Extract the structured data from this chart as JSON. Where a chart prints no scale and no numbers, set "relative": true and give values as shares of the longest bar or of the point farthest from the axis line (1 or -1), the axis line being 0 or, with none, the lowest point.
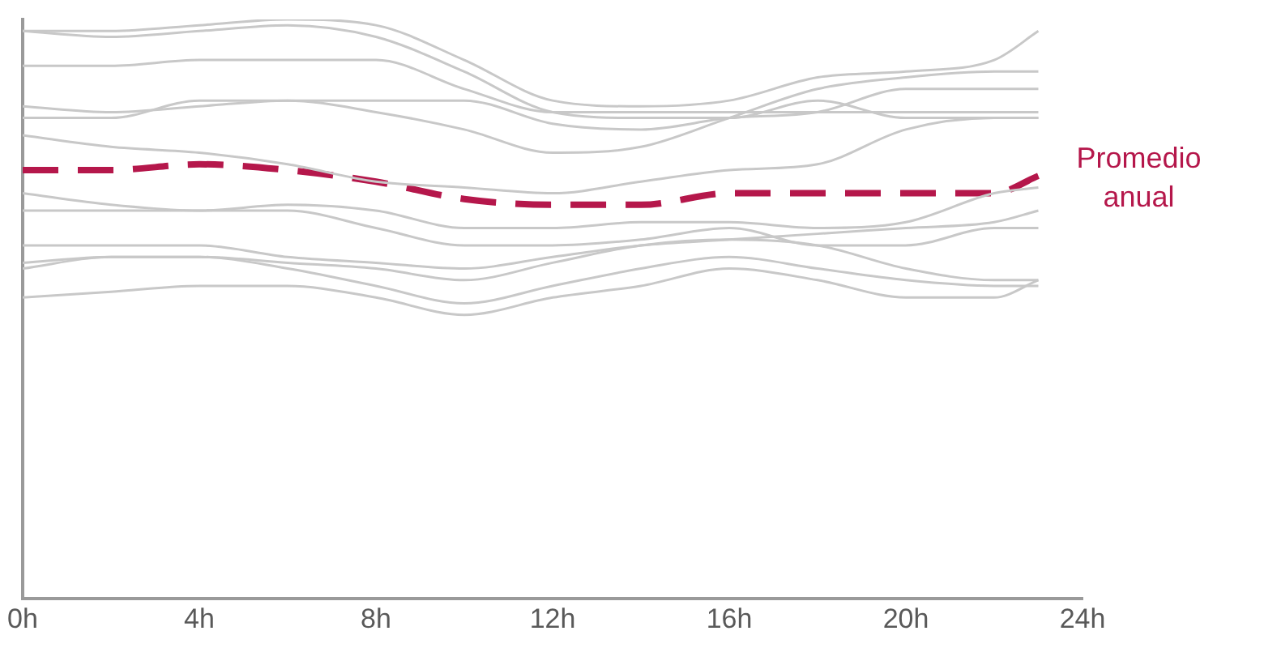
{
  "chart_data": {
    "type": "line",
    "relative": true,
    "x": [
      0,
      2,
      4,
      6,
      8,
      10,
      12,
      14,
      16,
      18,
      20,
      22,
      23
    ],
    "xlim": [
      0,
      24
    ],
    "xticks": [
      {
        "value": 0,
        "label": "0h"
      },
      {
        "value": 4,
        "label": "4h"
      },
      {
        "value": 8,
        "label": "8h"
      },
      {
        "value": 12,
        "label": "12h"
      },
      {
        "value": 16,
        "label": "16h"
      },
      {
        "value": 20,
        "label": "20h"
      },
      {
        "value": 24,
        "label": "24h"
      }
    ],
    "marker": "none",
    "legend": false,
    "grid": false,
    "series": [
      {
        "color": "#c8c8c8",
        "values": [
          0.98,
          0.98,
          0.99,
          1,
          0.99,
          0.93,
          0.86,
          0.85,
          0.86,
          0.9,
          0.91,
          0.93,
          0.98
        ]
      },
      {
        "color": "#c8c8c8",
        "values": [
          0.98,
          0.97,
          0.98,
          0.99,
          0.97,
          0.91,
          0.84,
          0.83,
          0.83,
          0.86,
          0.83,
          0.83,
          0.83
        ]
      },
      {
        "color": "#c8c8c8",
        "values": [
          0.92,
          0.92,
          0.93,
          0.93,
          0.93,
          0.88,
          0.84,
          0.84,
          0.84,
          0.84,
          0.84,
          0.84,
          0.84
        ]
      },
      {
        "color": "#c8c8c8",
        "values": [
          0.85,
          0.84,
          0.85,
          0.86,
          0.86,
          0.86,
          0.82,
          0.81,
          0.83,
          0.84,
          0.88,
          0.88,
          0.88
        ]
      },
      {
        "color": "#c8c8c8",
        "values": [
          0.83,
          0.83,
          0.86,
          0.86,
          0.84,
          0.81,
          0.77,
          0.78,
          0.83,
          0.88,
          0.9,
          0.91,
          0.91
        ]
      },
      {
        "color": "#c8c8c8",
        "values": [
          0.8,
          0.78,
          0.77,
          0.75,
          0.72,
          0.71,
          0.7,
          0.72,
          0.74,
          0.75,
          0.81,
          0.83,
          0.83
        ]
      },
      {
        "color": "#c8c8c8",
        "values": [
          0.7,
          0.68,
          0.67,
          0.68,
          0.67,
          0.64,
          0.64,
          0.65,
          0.65,
          0.64,
          0.65,
          0.7,
          0.71
        ]
      },
      {
        "color": "#c8c8c8",
        "values": [
          0.67,
          0.67,
          0.67,
          0.67,
          0.64,
          0.61,
          0.61,
          0.62,
          0.64,
          0.61,
          0.61,
          0.64,
          0.64
        ]
      },
      {
        "color": "#c8c8c8",
        "values": [
          0.58,
          0.59,
          0.59,
          0.58,
          0.57,
          0.55,
          0.58,
          0.61,
          0.62,
          0.61,
          0.57,
          0.55,
          0.55
        ]
      },
      {
        "color": "#c8c8c8",
        "values": [
          0.57,
          0.59,
          0.59,
          0.57,
          0.54,
          0.51,
          0.54,
          0.57,
          0.59,
          0.57,
          0.55,
          0.54,
          0.54
        ]
      },
      {
        "color": "#c8c8c8",
        "values": [
          0.52,
          0.53,
          0.54,
          0.54,
          0.52,
          0.49,
          0.52,
          0.54,
          0.57,
          0.55,
          0.52,
          0.52,
          0.55
        ]
      },
      {
        "color": "#c8c8c8",
        "values": [
          0.61,
          0.61,
          0.61,
          0.59,
          0.58,
          0.57,
          0.59,
          0.61,
          0.62,
          0.63,
          0.64,
          0.65,
          0.67
        ]
      },
      {
        "name": "Promedio anual",
        "color": "#b5174b",
        "line_style": "dashed",
        "values": [
          0.74,
          0.74,
          0.75,
          0.74,
          0.72,
          0.69,
          0.68,
          0.68,
          0.7,
          0.7,
          0.7,
          0.7,
          0.73
        ]
      }
    ]
  }
}
